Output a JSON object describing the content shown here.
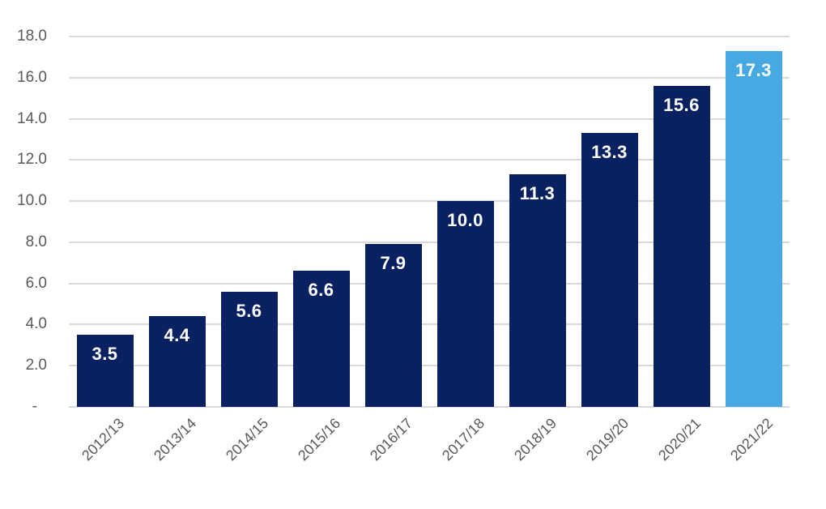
{
  "chart_data": {
    "type": "bar",
    "title": "",
    "xlabel": "",
    "ylabel": "",
    "categories": [
      "2012/13",
      "2013/14",
      "2014/15",
      "2015/16",
      "2016/17",
      "2017/18",
      "2018/19",
      "2019/20",
      "2020/21",
      "2021/22"
    ],
    "values": [
      3.5,
      4.4,
      5.6,
      6.6,
      7.9,
      10.0,
      11.3,
      13.3,
      15.6,
      17.3
    ],
    "value_labels": [
      "3.5",
      "4.4",
      "5.6",
      "6.6",
      "7.9",
      "10.0",
      "11.3",
      "13.3",
      "15.6",
      "17.3"
    ],
    "ylim": [
      0,
      18
    ],
    "y_ticks": [
      {
        "value": 18,
        "label": "18.0"
      },
      {
        "value": 16,
        "label": "16.0"
      },
      {
        "value": 14,
        "label": "14.0"
      },
      {
        "value": 12,
        "label": "12.0"
      },
      {
        "value": 10,
        "label": "10.0"
      },
      {
        "value": 8,
        "label": "8.0"
      },
      {
        "value": 6,
        "label": "6.0"
      },
      {
        "value": 4,
        "label": "4.0"
      },
      {
        "value": 2,
        "label": "2.0"
      },
      {
        "value": 0,
        "label": "-"
      }
    ],
    "grid": true,
    "legend": false,
    "highlight_index": 9,
    "colors": {
      "bar": "#0a2161",
      "highlight": "#47a9e1",
      "gridline": "#d9d9d9",
      "axis_text": "#595959",
      "value_label": "#ffffff"
    }
  }
}
